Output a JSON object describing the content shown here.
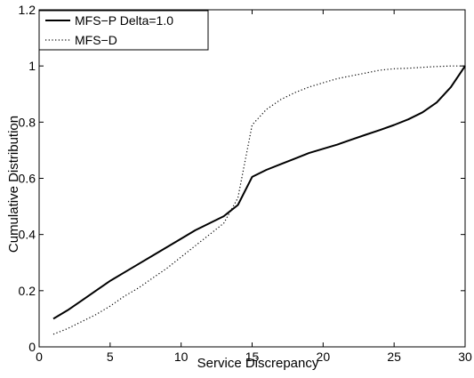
{
  "chart_data": {
    "type": "line",
    "title": "",
    "xlabel": "Service  Discrepancy",
    "ylabel": "Cumulative Distribution",
    "xlim": [
      0,
      30
    ],
    "ylim": [
      0,
      1.2
    ],
    "xticks": [
      0,
      5,
      10,
      15,
      20,
      25,
      30
    ],
    "xtick_labels": [
      "0",
      "5",
      "10",
      "15",
      "20",
      "25",
      "30"
    ],
    "yticks": [
      0,
      0.2,
      0.4,
      0.6,
      0.8,
      1,
      1.2
    ],
    "ytick_labels": [
      "0",
      "0.2",
      "0.4",
      "0.6",
      "0.8",
      "1",
      "1.2"
    ],
    "grid": false,
    "legend_position": "top-left",
    "series": [
      {
        "name": "MFS−P Delta=1.0",
        "style": "solid",
        "color": "#000000",
        "points": [
          [
            1,
            0.1
          ],
          [
            2,
            0.13
          ],
          [
            3,
            0.165
          ],
          [
            4,
            0.2
          ],
          [
            5,
            0.235
          ],
          [
            6,
            0.265
          ],
          [
            7,
            0.295
          ],
          [
            8,
            0.325
          ],
          [
            9,
            0.355
          ],
          [
            10,
            0.385
          ],
          [
            11,
            0.415
          ],
          [
            12,
            0.44
          ],
          [
            13,
            0.465
          ],
          [
            14,
            0.505
          ],
          [
            15,
            0.605
          ],
          [
            16,
            0.63
          ],
          [
            17,
            0.65
          ],
          [
            18,
            0.67
          ],
          [
            19,
            0.69
          ],
          [
            20,
            0.705
          ],
          [
            21,
            0.72
          ],
          [
            22,
            0.738
          ],
          [
            23,
            0.755
          ],
          [
            24,
            0.772
          ],
          [
            25,
            0.79
          ],
          [
            26,
            0.81
          ],
          [
            27,
            0.835
          ],
          [
            28,
            0.87
          ],
          [
            29,
            0.925
          ],
          [
            30,
            1.0
          ]
        ]
      },
      {
        "name": "MFS−D",
        "style": "dotted",
        "color": "#000000",
        "points": [
          [
            1,
            0.045
          ],
          [
            2,
            0.065
          ],
          [
            3,
            0.09
          ],
          [
            4,
            0.115
          ],
          [
            5,
            0.145
          ],
          [
            6,
            0.18
          ],
          [
            7,
            0.21
          ],
          [
            8,
            0.245
          ],
          [
            9,
            0.28
          ],
          [
            10,
            0.32
          ],
          [
            11,
            0.36
          ],
          [
            12,
            0.4
          ],
          [
            13,
            0.44
          ],
          [
            14,
            0.53
          ],
          [
            14.5,
            0.66
          ],
          [
            15,
            0.79
          ],
          [
            16,
            0.845
          ],
          [
            17,
            0.88
          ],
          [
            18,
            0.905
          ],
          [
            19,
            0.925
          ],
          [
            20,
            0.94
          ],
          [
            21,
            0.955
          ],
          [
            22,
            0.965
          ],
          [
            23,
            0.975
          ],
          [
            24,
            0.985
          ],
          [
            25,
            0.99
          ],
          [
            26,
            0.992
          ],
          [
            27,
            0.995
          ],
          [
            28,
            0.998
          ],
          [
            29,
            1.0
          ],
          [
            30,
            1.0
          ]
        ]
      }
    ]
  }
}
